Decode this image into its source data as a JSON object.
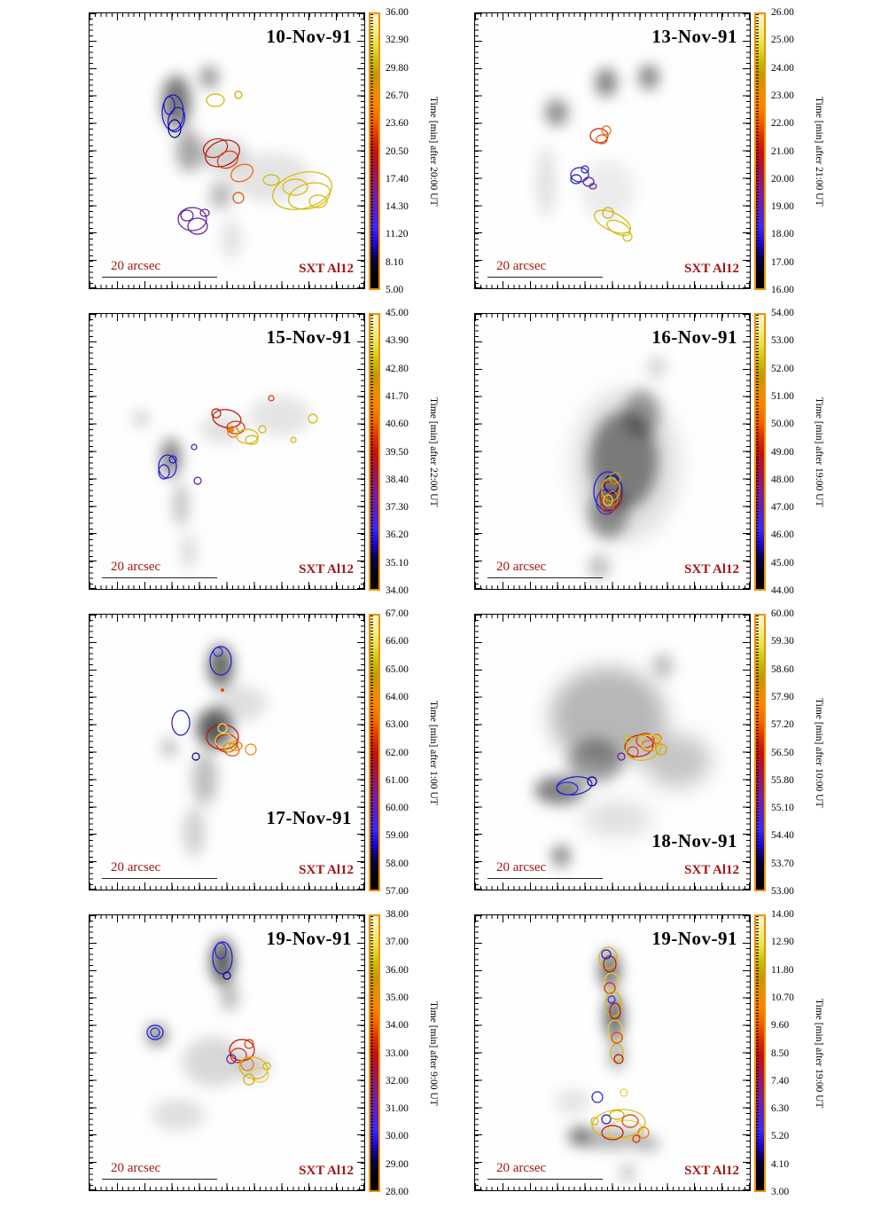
{
  "figure": {
    "accent_red": "#a31515",
    "scale_label": "20 arcsec",
    "instrument_label": "SXT Al12",
    "colorbar": {
      "border_color": "#f09000",
      "gradient_stops": [
        "#000000",
        "#02000f",
        "#05004d",
        "#1a0ad4",
        "#3c2bee",
        "#5a20c0",
        "#77209b",
        "#8f1b6b",
        "#aa123d",
        "#c51312",
        "#dd3305",
        "#f26300",
        "#fb8200",
        "#e79000",
        "#c09a00",
        "#cdbf0a",
        "#e7e04a",
        "#f4ee8e",
        "#fbf6c8"
      ]
    },
    "panels": [
      {
        "date": "10-Nov-91",
        "colorbar_label": "Time [min] after 20:00 UT",
        "ticks": [
          "36.00",
          "32.90",
          "29.80",
          "26.70",
          "23.60",
          "20.50",
          "17.40",
          "14.30",
          "11.20",
          "8.10",
          "5.00"
        ]
      },
      {
        "date": "13-Nov-91",
        "colorbar_label": "Time [min] after 21:00 UT",
        "ticks": [
          "26.00",
          "25.00",
          "24.00",
          "23.00",
          "22.00",
          "21.00",
          "20.00",
          "19.00",
          "18.00",
          "17.00",
          "16.00"
        ]
      },
      {
        "date": "15-Nov-91",
        "colorbar_label": "Time [min] after 22:00 UT",
        "ticks": [
          "45.00",
          "43.90",
          "42.80",
          "41.70",
          "40.60",
          "39.50",
          "38.40",
          "37.30",
          "36.20",
          "35.10",
          "34.00"
        ]
      },
      {
        "date": "16-Nov-91",
        "colorbar_label": "Time [min] after 19:00 UT",
        "ticks": [
          "54.00",
          "53.00",
          "52.00",
          "51.00",
          "50.00",
          "49.00",
          "48.00",
          "47.00",
          "46.00",
          "45.00",
          "44.00"
        ]
      },
      {
        "date": "17-Nov-91",
        "colorbar_label": "Time [min] after 1:00 UT",
        "ticks": [
          "67.00",
          "66.00",
          "65.00",
          "64.00",
          "63.00",
          "62.00",
          "61.00",
          "60.00",
          "59.00",
          "58.00",
          "57.00"
        ]
      },
      {
        "date": "18-Nov-91",
        "colorbar_label": "Time [min] after 10:00 UT",
        "ticks": [
          "60.00",
          "59.30",
          "58.60",
          "57.90",
          "57.20",
          "56.50",
          "55.80",
          "55.10",
          "54.40",
          "53.70",
          "53.00"
        ]
      },
      {
        "date": "19-Nov-91",
        "colorbar_label": "Time [min] after 9:00 UT",
        "ticks": [
          "38.00",
          "37.00",
          "36.00",
          "35.00",
          "34.00",
          "33.00",
          "32.00",
          "31.00",
          "30.00",
          "29.00",
          "28.00"
        ]
      },
      {
        "date": "19-Nov-91",
        "colorbar_label": "Time [min] after 19:00 UT",
        "ticks": [
          "14.00",
          "12.90",
          "11.80",
          "10.70",
          "9.60",
          "8.50",
          "7.40",
          "6.30",
          "5.20",
          "4.10",
          "3.00"
        ]
      }
    ]
  },
  "chart_data": [
    {
      "type": "heatmap",
      "title": "10-Nov-91",
      "colorbar_label": "Time [min] after 20:00 UT",
      "colorbar_ticks": [
        36.0,
        32.9,
        29.8,
        26.7,
        23.6,
        20.5,
        17.4,
        14.3,
        11.2,
        8.1,
        5.0
      ],
      "colorbar_range": [
        5.0,
        36.0
      ],
      "scale_bar": "20 arcsec",
      "instrument": "SXT Al12"
    },
    {
      "type": "heatmap",
      "title": "13-Nov-91",
      "colorbar_label": "Time [min] after 21:00 UT",
      "colorbar_ticks": [
        26.0,
        25.0,
        24.0,
        23.0,
        22.0,
        21.0,
        20.0,
        19.0,
        18.0,
        17.0,
        16.0
      ],
      "colorbar_range": [
        16.0,
        26.0
      ],
      "scale_bar": "20 arcsec",
      "instrument": "SXT Al12"
    },
    {
      "type": "heatmap",
      "title": "15-Nov-91",
      "colorbar_label": "Time [min] after 22:00 UT",
      "colorbar_ticks": [
        45.0,
        43.9,
        42.8,
        41.7,
        40.6,
        39.5,
        38.4,
        37.3,
        36.2,
        35.1,
        34.0
      ],
      "colorbar_range": [
        34.0,
        45.0
      ],
      "scale_bar": "20 arcsec",
      "instrument": "SXT Al12"
    },
    {
      "type": "heatmap",
      "title": "16-Nov-91",
      "colorbar_label": "Time [min] after 19:00 UT",
      "colorbar_ticks": [
        54.0,
        53.0,
        52.0,
        51.0,
        50.0,
        49.0,
        48.0,
        47.0,
        46.0,
        45.0,
        44.0
      ],
      "colorbar_range": [
        44.0,
        54.0
      ],
      "scale_bar": "20 arcsec",
      "instrument": "SXT Al12"
    },
    {
      "type": "heatmap",
      "title": "17-Nov-91",
      "colorbar_label": "Time [min] after 1:00 UT",
      "colorbar_ticks": [
        67.0,
        66.0,
        65.0,
        64.0,
        63.0,
        62.0,
        61.0,
        60.0,
        59.0,
        58.0,
        57.0
      ],
      "colorbar_range": [
        57.0,
        67.0
      ],
      "scale_bar": "20 arcsec",
      "instrument": "SXT Al12"
    },
    {
      "type": "heatmap",
      "title": "18-Nov-91",
      "colorbar_label": "Time [min] after 10:00 UT",
      "colorbar_ticks": [
        60.0,
        59.3,
        58.6,
        57.9,
        57.2,
        56.5,
        55.8,
        55.1,
        54.4,
        53.7,
        53.0
      ],
      "colorbar_range": [
        53.0,
        60.0
      ],
      "scale_bar": "20 arcsec",
      "instrument": "SXT Al12"
    },
    {
      "type": "heatmap",
      "title": "19-Nov-91",
      "colorbar_label": "Time [min] after 9:00 UT",
      "colorbar_ticks": [
        38.0,
        37.0,
        36.0,
        35.0,
        34.0,
        33.0,
        32.0,
        31.0,
        30.0,
        29.0,
        28.0
      ],
      "colorbar_range": [
        28.0,
        38.0
      ],
      "scale_bar": "20 arcsec",
      "instrument": "SXT Al12"
    },
    {
      "type": "heatmap",
      "title": "19-Nov-91",
      "colorbar_label": "Time [min] after 19:00 UT",
      "colorbar_ticks": [
        14.0,
        12.9,
        11.8,
        10.7,
        9.6,
        8.5,
        7.4,
        6.3,
        5.2,
        4.1,
        3.0
      ],
      "colorbar_range": [
        3.0,
        14.0
      ],
      "scale_bar": "20 arcsec",
      "instrument": "SXT Al12"
    }
  ]
}
